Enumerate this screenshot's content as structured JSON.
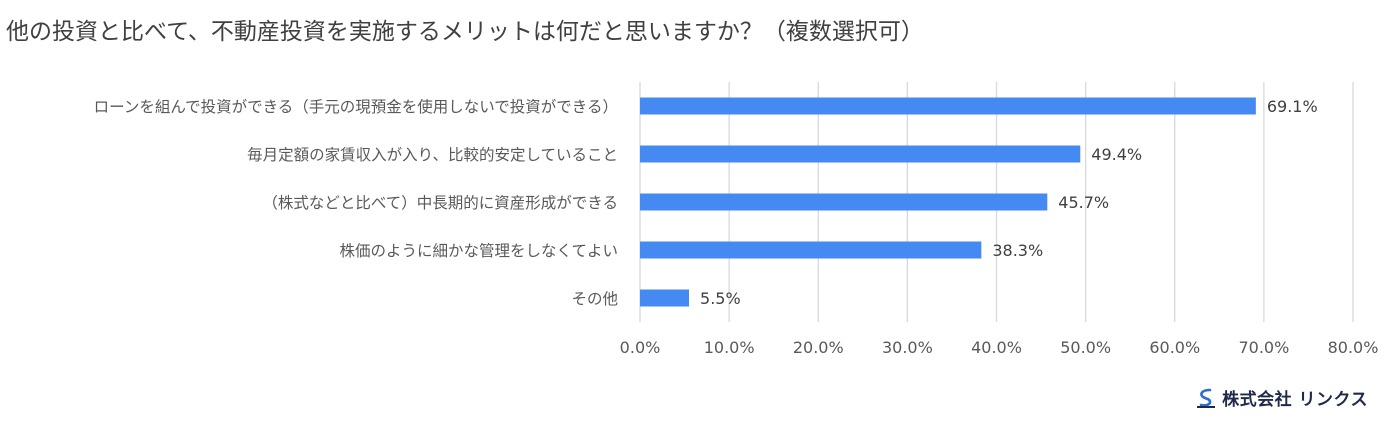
{
  "chart_data": {
    "type": "bar",
    "orientation": "horizontal",
    "title": "他の投資と比べて、不動産投資を実施するメリットは何だと思いますか？（複数選択可）",
    "categories": [
      "ローンを組んで投資ができる（手元の現預金を使用しないで投資ができる）",
      "毎月定額の家賃収入が入り、比較的安定していること",
      "（株式などと比べて）中長期的に資産形成ができる",
      "株価のように細かな管理をしなくてよい",
      "その他"
    ],
    "values": [
      69.1,
      49.4,
      45.7,
      38.3,
      5.5
    ],
    "value_labels": [
      "69.1%",
      "49.4%",
      "45.7%",
      "38.3%",
      "5.5%"
    ],
    "xlim": [
      0,
      80
    ],
    "xticks": [
      0,
      10,
      20,
      30,
      40,
      50,
      60,
      70,
      80
    ],
    "xtick_labels": [
      "0.0%",
      "10.0%",
      "20.0%",
      "30.0%",
      "40.0%",
      "50.0%",
      "60.0%",
      "70.0%",
      "80.0%"
    ],
    "grid": true,
    "legend": "none",
    "bar_color": "#4589F3",
    "grid_color": "#D9D9D9"
  },
  "logo": {
    "company": "株式会社 リンクス",
    "icon": "link-s-logo-icon"
  }
}
